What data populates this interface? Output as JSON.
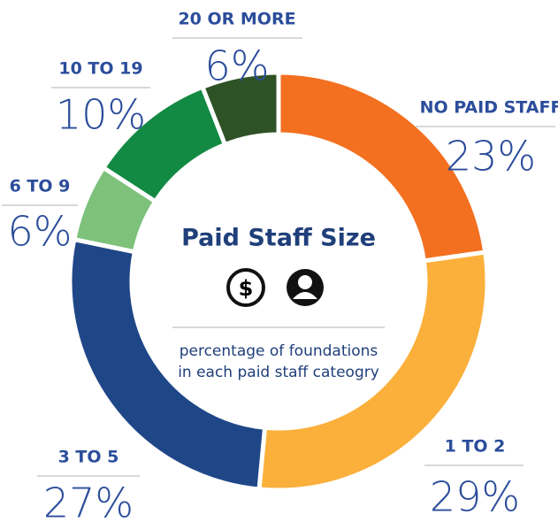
{
  "chart_data": {
    "type": "donut",
    "title": "Paid Staff Size",
    "subtitle": "percentage of foundations in each paid staff cateogry",
    "categories": [
      "NO PAID STAFF",
      "1 TO 2",
      "3 TO 5",
      "6 TO 9",
      "10 TO 19",
      "20 OR MORE"
    ],
    "values": [
      23,
      29,
      27,
      6,
      10,
      6
    ],
    "value_labels": [
      "23%",
      "29%",
      "27%",
      "6%",
      "10%",
      "6%"
    ],
    "colors": [
      "#f37021",
      "#fbb03b",
      "#1f4788",
      "#7dc17a",
      "#138a43",
      "#2e5225"
    ]
  }
}
